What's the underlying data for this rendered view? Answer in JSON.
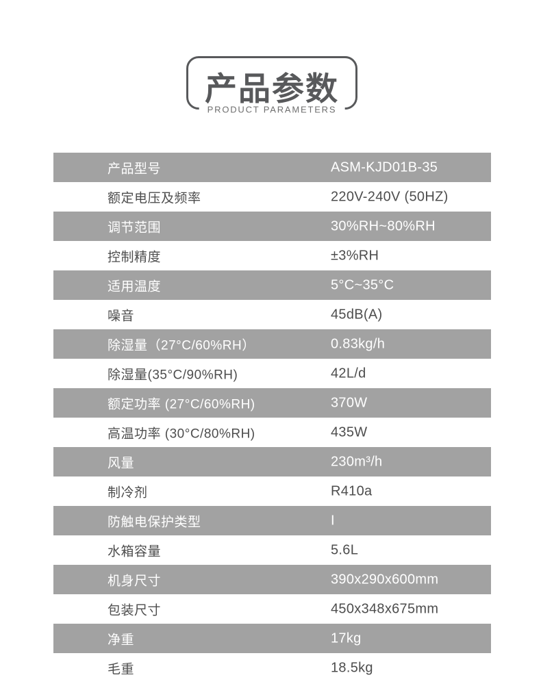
{
  "colors": {
    "page_bg": "#ffffff",
    "title": "#58595b",
    "box_border": "#58595b",
    "subtitle": "#6e6e6e",
    "gray_row_bg": "#a2a2a2",
    "gray_row_text": "#ffffff",
    "plain_row_text": "#4d4d4d"
  },
  "header": {
    "title": "产品参数",
    "subtitle": "PRODUCT PARAMETERS"
  },
  "table": {
    "rows": [
      {
        "label": "产品型号",
        "value": "ASM-KJD01B-35",
        "shaded": true
      },
      {
        "label": "额定电压及频率",
        "value": "220V-240V (50HZ)",
        "shaded": false
      },
      {
        "label": "调节范围",
        "value": "30%RH~80%RH",
        "shaded": true
      },
      {
        "label": "控制精度",
        "value": "±3%RH",
        "shaded": false
      },
      {
        "label": "适用温度",
        "value": "5°C~35°C",
        "shaded": true
      },
      {
        "label": "噪音",
        "value": "45dB(A)",
        "shaded": false
      },
      {
        "label": "除湿量（27°C/60%RH）",
        "value": "0.83kg/h",
        "shaded": true
      },
      {
        "label": "除湿量(35°C/90%RH)",
        "value": "42L/d",
        "shaded": false
      },
      {
        "label": "额定功率 (27°C/60%RH)",
        "value": "370W",
        "shaded": true
      },
      {
        "label": "高温功率 (30°C/80%RH)",
        "value": "435W",
        "shaded": false
      },
      {
        "label": "风量",
        "value": "230m³/h",
        "shaded": true
      },
      {
        "label": "制冷剂",
        "value": "R410a",
        "shaded": false
      },
      {
        "label": "防触电保护类型",
        "value": "I",
        "shaded": true
      },
      {
        "label": "水箱容量",
        "value": "5.6L",
        "shaded": false
      },
      {
        "label": "机身尺寸",
        "value": "390x290x600mm",
        "shaded": true
      },
      {
        "label": "包装尺寸",
        "value": "450x348x675mm",
        "shaded": false
      },
      {
        "label": "净重",
        "value": "17kg",
        "shaded": true
      },
      {
        "label": "毛重",
        "value": "18.5kg",
        "shaded": false
      }
    ]
  }
}
